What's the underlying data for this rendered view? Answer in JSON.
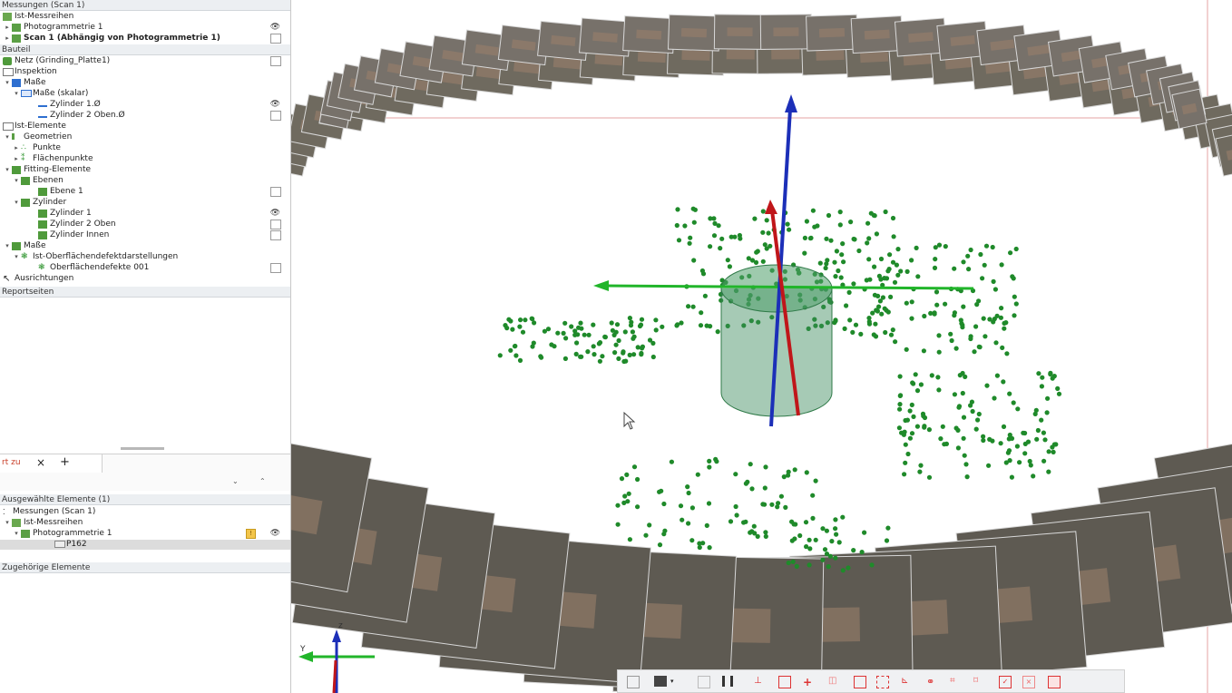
{
  "tree": {
    "header_measurements": "Messungen (Scan 1)",
    "ist_messreihen": "Ist-Messreihen",
    "photogrammetrie1": "Photogrammetrie 1",
    "scan1": "Scan 1 (Abhängig von Photogrammetrie 1)",
    "header_bauteil": "Bauteil",
    "netz": "Netz (Grinding_Platte1)",
    "inspektion": "Inspektion",
    "masse": "Maße",
    "masse_skalar": "Maße (skalar)",
    "zylinder1_d": "Zylinder 1.Ø",
    "zylinder2_d": "Zylinder 2 Oben.Ø",
    "ist_elemente": "Ist-Elemente",
    "geometrien": "Geometrien",
    "punkte": "Punkte",
    "flaechenpunkte": "Flächenpunkte",
    "fitting": "Fitting-Elemente",
    "ebenen": "Ebenen",
    "ebene1": "Ebene 1",
    "zylinder": "Zylinder",
    "zylinder1": "Zylinder 1",
    "zylinder2oben": "Zylinder 2 Oben",
    "zylinderinnen": "Zylinder Innen",
    "masse2": "Maße",
    "oberflaechen": "Ist-Oberflächendefektdarstellungen",
    "oberflaechen001": "Oberflächendefekte 001",
    "ausrichtungen": "Ausrichtungen",
    "header_report": "Reportseiten"
  },
  "tabs": {
    "tab1": "rt zu",
    "close": "×",
    "add": "+"
  },
  "selection": {
    "header": "Ausgewählte Elemente (1)",
    "messungen": "Messungen (Scan 1)",
    "ist_messreihen": "Ist-Messreihen",
    "photogrammetrie1": "Photogrammetrie 1",
    "p162": "P162",
    "header_zugehoerig": "Zugehörige Elemente"
  },
  "viewport": {
    "axis_label_z": "z",
    "axis_label_y": "Y"
  },
  "colors": {
    "axis_x": "#c0161a",
    "axis_y": "#21b52a",
    "axis_z": "#1c2fb8",
    "points": "#1f8a2a",
    "cylinder": "#3a8a5a"
  }
}
